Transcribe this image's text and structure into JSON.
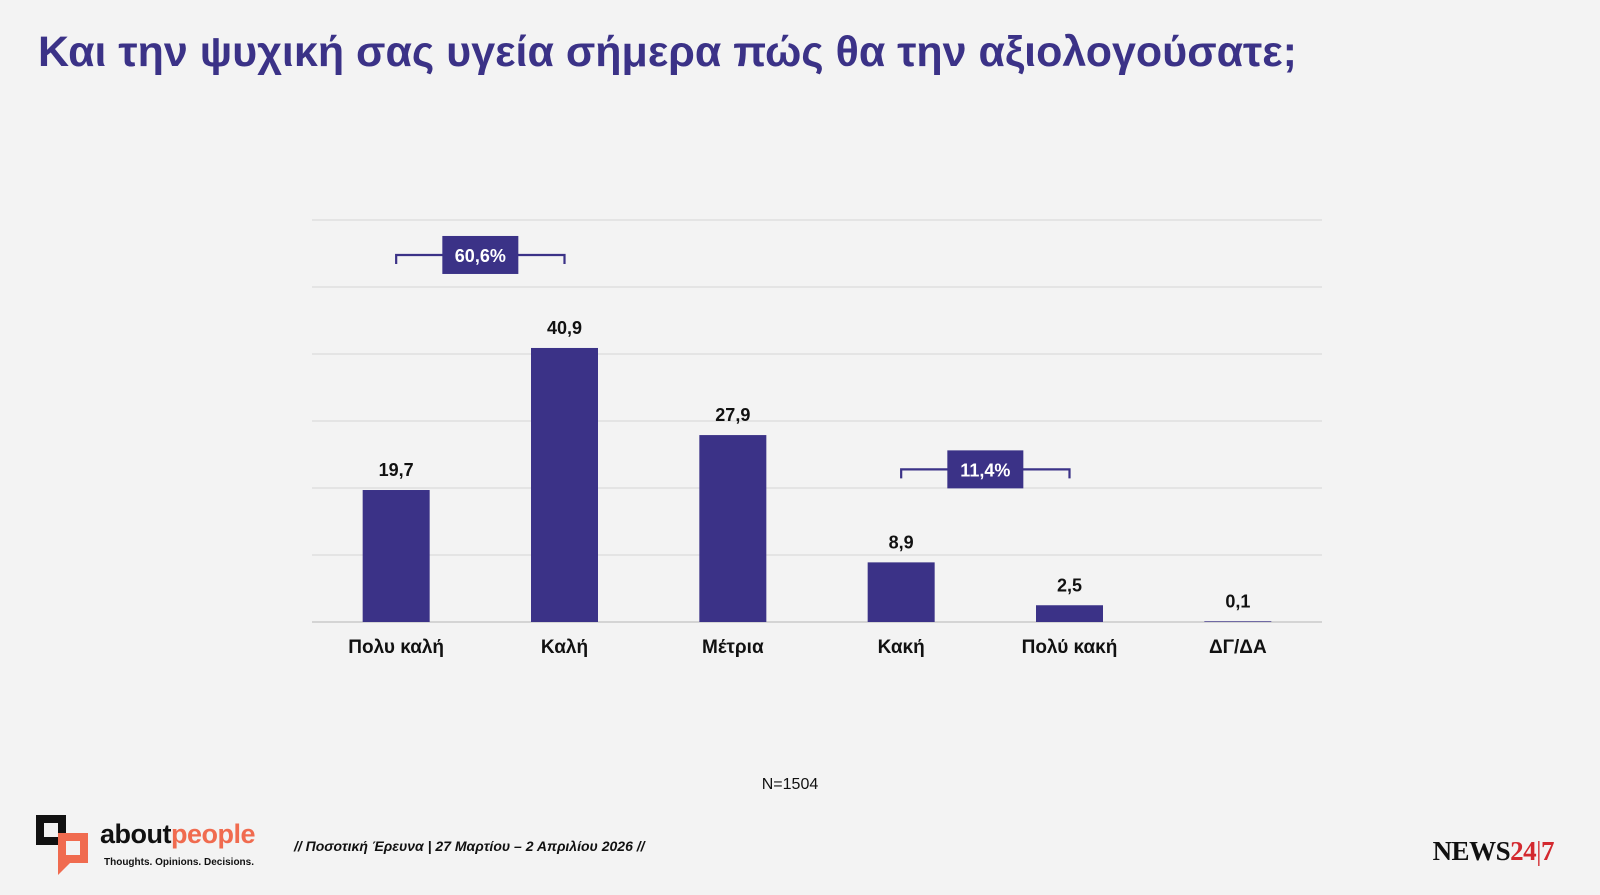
{
  "title": "Και την ψυχική σας υγεία σήμερα πώς θα την αξιολογούσατε;",
  "chart_data": {
    "type": "bar",
    "title": "Και την ψυχική σας υγεία σήμερα πώς θα την αξιολογούσατε;",
    "categories": [
      "Πολυ καλή",
      "Καλή",
      "Μέτρια",
      "Κακή",
      "Πολύ κακή",
      "ΔΓ/ΔΑ"
    ],
    "values": [
      19.7,
      40.9,
      27.9,
      8.9,
      2.5,
      0.1
    ],
    "value_labels": [
      "19,7",
      "40,9",
      "27,9",
      "8,9",
      "2,5",
      "0,1"
    ],
    "ylim": [
      0,
      60
    ],
    "gridlines": [
      0,
      10,
      20,
      30,
      40,
      50,
      60
    ],
    "grid": true,
    "xlabel": "",
    "ylabel": "",
    "bar_color": "#3b3287",
    "groups": [
      {
        "label": "60,6%",
        "from": 0,
        "to": 1
      },
      {
        "label": "11,4%",
        "from": 3,
        "to": 4
      }
    ]
  },
  "sample": "N=1504",
  "footer": {
    "brand_part1": "about",
    "brand_part2": "people",
    "tagline": "Thoughts. Opinions. Decisions.",
    "survey": "// Ποσοτική Έρευνα | 27 Μαρτίου – 2 Απριλίου 2026 //",
    "news_part1": "NEWS",
    "news_part2": "24",
    "news_sep": "|",
    "news_part3": "7"
  },
  "colors": {
    "accent": "#3b3287",
    "brand_orange": "#f06b4f",
    "news_red": "#d3292f"
  }
}
